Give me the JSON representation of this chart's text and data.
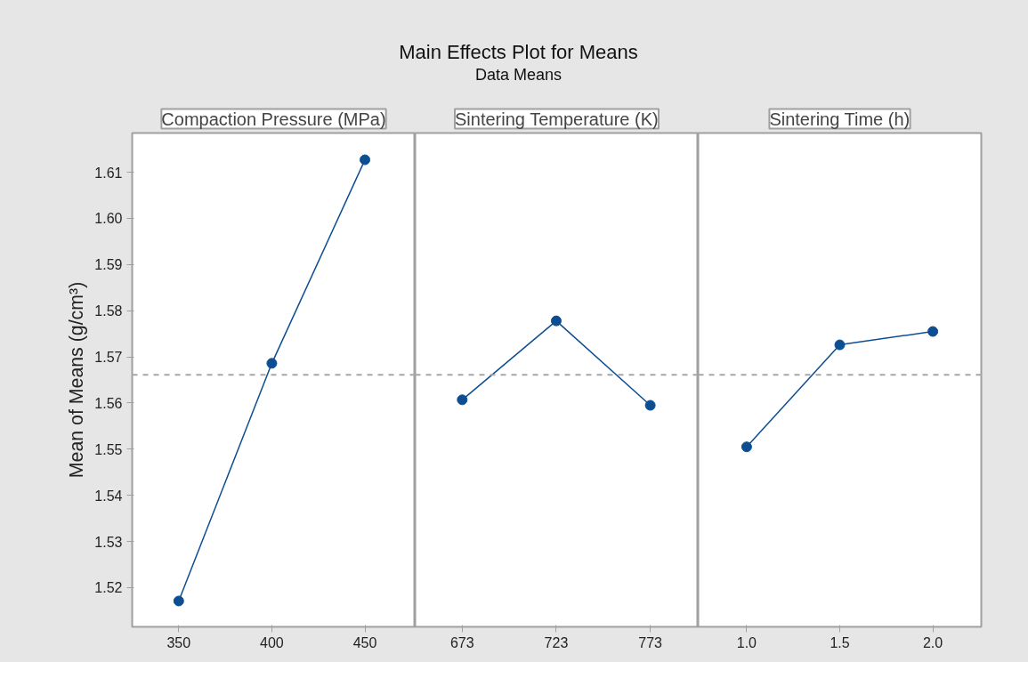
{
  "chart_data": [
    {
      "type": "line",
      "title": "Compaction Pressure (MPa)",
      "annotations": [
        "Main Effects Plot for Means",
        "Data Means"
      ],
      "ylabel": "Mean of Means (g/cm³)",
      "marker": "circle",
      "x": [
        350,
        400,
        450
      ],
      "series": [
        {
          "color": "#0d4e92",
          "values": [
            1.5171,
            1.5686,
            1.6127
          ]
        }
      ],
      "xlim": [
        325,
        477
      ],
      "xticks": [
        350,
        400,
        450
      ],
      "ylim": [
        1.5115,
        1.6185
      ],
      "yticks": [
        1.52,
        1.53,
        1.54,
        1.55,
        1.56,
        1.57,
        1.58,
        1.59,
        {
          "value": 1.6,
          "label": "1.60"
        },
        1.61
      ],
      "ref_lines": [
        {
          "axis": "y",
          "value": 1.5661,
          "color": "#a6a6a6",
          "line_style": "dashed"
        }
      ]
    },
    {
      "type": "line",
      "title": "Sintering Temperature (K)",
      "marker": "circle",
      "x": [
        673,
        723,
        773
      ],
      "series": [
        {
          "color": "#0d4e92",
          "values": [
            1.5607,
            1.5778,
            1.5595
          ]
        }
      ],
      "xlim": [
        648,
        798.5
      ],
      "xticks": [
        673,
        723,
        773
      ],
      "ylim": [
        1.5115,
        1.6185
      ],
      "tick_labels": "x",
      "ref_lines": [
        {
          "axis": "y",
          "value": 1.5661,
          "color": "#a6a6a6",
          "line_style": "dashed"
        }
      ]
    },
    {
      "type": "line",
      "title": "Sintering Time (h)",
      "marker": "circle",
      "x": [
        1.0,
        1.5,
        2.0
      ],
      "series": [
        {
          "color": "#0d4e92",
          "values": [
            1.5505,
            1.5726,
            1.5755
          ]
        }
      ],
      "xlim": [
        0.74,
        2.26
      ],
      "xticks": [
        {
          "value": 1.0,
          "label": "1.0"
        },
        1.5,
        {
          "value": 2.0,
          "label": "2.0"
        }
      ],
      "ylim": [
        1.5115,
        1.6185
      ],
      "tick_labels": "x",
      "ref_lines": [
        {
          "axis": "y",
          "value": 1.5661,
          "color": "#a6a6a6",
          "line_style": "dashed"
        }
      ]
    }
  ]
}
